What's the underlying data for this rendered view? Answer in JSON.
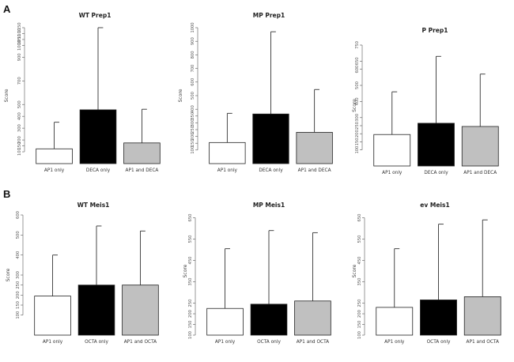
{
  "panels": {
    "a": "A",
    "b": "B"
  },
  "chart_data": [
    {
      "type": "bar",
      "title": "WT Prep1",
      "ylabel": "Score",
      "categories": [
        "AP1 only",
        "DECA only",
        "AP1 and DECA"
      ],
      "values": [
        125,
        455,
        175
      ],
      "errors": [
        350,
        1150,
        460
      ],
      "ylim": [
        0,
        1150
      ],
      "yticks": [
        100,
        150,
        200,
        300,
        400,
        500,
        700,
        900,
        1000,
        1050,
        1100,
        1150
      ],
      "fills": [
        "#ffffff",
        "#000000",
        "#c0c0c0"
      ]
    },
    {
      "type": "bar",
      "title": "MP Prep1",
      "ylabel": "Score",
      "categories": [
        "AP1 only",
        "DECA only",
        "AP1 and DECA"
      ],
      "values": [
        155,
        365,
        230
      ],
      "errors": [
        370,
        970,
        545
      ],
      "ylim": [
        0,
        1000
      ],
      "yticks": [
        100,
        150,
        200,
        250,
        300,
        350,
        400,
        500,
        600,
        700,
        800,
        900,
        1000
      ],
      "fills": [
        "#ffffff",
        "#000000",
        "#c0c0c0"
      ]
    },
    {
      "type": "bar",
      "title": "P Prep1",
      "ylabel": "Score",
      "categories": [
        "AP1 only",
        "DECA only",
        "AP1 and DECA"
      ],
      "values": [
        195,
        265,
        245
      ],
      "errors": [
        460,
        680,
        570
      ],
      "ylim": [
        0,
        750
      ],
      "yticks": [
        100,
        150,
        200,
        250,
        300,
        400,
        500,
        600,
        650,
        750
      ],
      "fills": [
        "#ffffff",
        "#000000",
        "#c0c0c0"
      ]
    },
    {
      "type": "bar",
      "title": "WT Meis1",
      "ylabel": "Score",
      "categories": [
        "AP1 only",
        "OCTA only",
        "AP1 and OCTA"
      ],
      "values": [
        195,
        250,
        250
      ],
      "errors": [
        400,
        545,
        520
      ],
      "ylim": [
        0,
        600
      ],
      "yticks": [
        100,
        150,
        200,
        250,
        300,
        400,
        500,
        600
      ],
      "fills": [
        "#ffffff",
        "#000000",
        "#c0c0c0"
      ]
    },
    {
      "type": "bar",
      "title": "MP Meis1",
      "ylabel": "Score",
      "categories": [
        "AP1 only",
        "OCTA only",
        "AP1 and OCTA"
      ],
      "values": [
        225,
        245,
        260
      ],
      "errors": [
        505,
        590,
        580
      ],
      "ylim": [
        100,
        700
      ],
      "yticks": [
        100,
        150,
        200,
        250,
        350,
        450,
        550,
        650
      ],
      "fills": [
        "#ffffff",
        "#000000",
        "#c0c0c0"
      ]
    },
    {
      "type": "bar",
      "title": "ev Meis1",
      "ylabel": "Score",
      "categories": [
        "AP1 only",
        "OCTA only",
        "AP1 and OCTA"
      ],
      "values": [
        230,
        265,
        280
      ],
      "errors": [
        505,
        620,
        640
      ],
      "ylim": [
        100,
        700
      ],
      "yticks": [
        100,
        150,
        200,
        250,
        350,
        450,
        550,
        650
      ],
      "fills": [
        "#ffffff",
        "#000000",
        "#c0c0c0"
      ]
    }
  ]
}
